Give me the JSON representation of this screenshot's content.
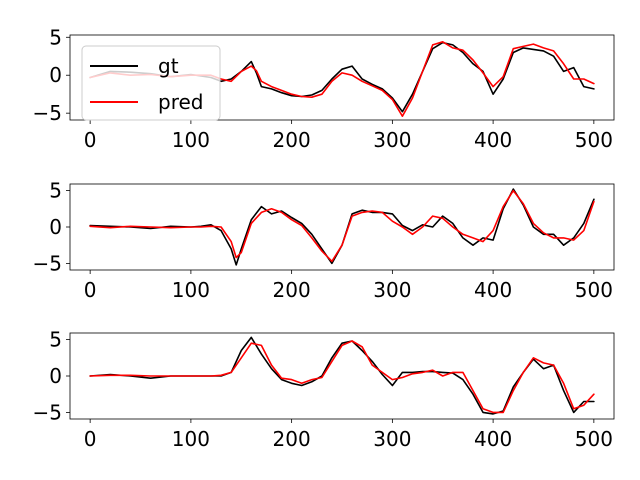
{
  "figure": {
    "legend_entries": [
      "gt",
      "pred"
    ]
  },
  "chart_data": [
    {
      "type": "line",
      "title": "",
      "xlabel": "",
      "ylabel": "",
      "xlim": [
        -20,
        520
      ],
      "ylim": [
        -5.9,
        5.3
      ],
      "xticks": [
        0,
        100,
        200,
        300,
        400,
        500
      ],
      "yticks": [
        -5,
        0,
        5
      ],
      "grid": false,
      "legend": {
        "placement": "upper-left",
        "entries": [
          "gt",
          "pred"
        ]
      },
      "series": [
        {
          "name": "gt",
          "color": "#000000",
          "x": [
            0,
            20,
            40,
            60,
            80,
            100,
            120,
            130,
            140,
            150,
            160,
            165,
            170,
            180,
            190,
            200,
            210,
            220,
            230,
            240,
            250,
            260,
            270,
            280,
            290,
            300,
            310,
            320,
            330,
            340,
            350,
            360,
            370,
            380,
            390,
            400,
            410,
            420,
            430,
            440,
            450,
            460,
            470,
            480,
            490,
            500
          ],
          "values": [
            -0.3,
            0.5,
            0.4,
            0.2,
            -0.2,
            0.1,
            -0.3,
            -0.8,
            -0.5,
            0.5,
            1.8,
            0.3,
            -1.5,
            -1.8,
            -2.3,
            -2.7,
            -2.8,
            -2.6,
            -2.0,
            -0.5,
            0.8,
            1.2,
            -0.5,
            -1.2,
            -1.8,
            -3.0,
            -4.8,
            -2.5,
            0.5,
            3.5,
            4.3,
            4.0,
            3.0,
            1.5,
            0.5,
            -2.5,
            -0.5,
            3.0,
            3.6,
            3.4,
            3.2,
            2.5,
            0.5,
            1.0,
            -1.5,
            -1.8
          ]
        },
        {
          "name": "pred",
          "color": "#ff0000",
          "x": [
            0,
            20,
            40,
            60,
            80,
            100,
            120,
            130,
            140,
            150,
            160,
            165,
            170,
            180,
            190,
            200,
            210,
            220,
            230,
            240,
            250,
            260,
            270,
            280,
            290,
            300,
            310,
            320,
            330,
            340,
            350,
            360,
            370,
            380,
            390,
            400,
            410,
            420,
            430,
            440,
            450,
            460,
            470,
            480,
            490,
            500
          ],
          "values": [
            -0.3,
            0.3,
            0.0,
            0.1,
            -0.2,
            0.0,
            0.0,
            -0.5,
            -0.8,
            0.5,
            1.2,
            0.6,
            -0.8,
            -1.5,
            -2.0,
            -2.5,
            -2.8,
            -2.9,
            -2.5,
            -0.8,
            0.3,
            0.0,
            -0.8,
            -1.4,
            -2.0,
            -3.2,
            -5.4,
            -3.0,
            0.5,
            4.0,
            4.4,
            3.6,
            3.3,
            2.0,
            0.3,
            -1.5,
            -0.2,
            3.5,
            3.8,
            4.1,
            3.6,
            3.2,
            1.5,
            -0.5,
            -0.5,
            -1.1
          ]
        }
      ]
    },
    {
      "type": "line",
      "title": "",
      "xlabel": "",
      "ylabel": "",
      "xlim": [
        -20,
        520
      ],
      "ylim": [
        -5.9,
        5.9
      ],
      "xticks": [
        0,
        100,
        200,
        300,
        400,
        500
      ],
      "yticks": [
        -5,
        0,
        5
      ],
      "grid": false,
      "series": [
        {
          "name": "gt",
          "color": "#000000",
          "x": [
            0,
            20,
            40,
            60,
            80,
            100,
            110,
            120,
            130,
            140,
            145,
            150,
            160,
            170,
            180,
            190,
            200,
            210,
            220,
            230,
            240,
            250,
            260,
            270,
            280,
            290,
            300,
            310,
            320,
            330,
            340,
            350,
            360,
            370,
            380,
            390,
            400,
            410,
            420,
            430,
            440,
            450,
            460,
            470,
            480,
            490,
            500
          ],
          "values": [
            0.2,
            0.1,
            0.0,
            -0.2,
            0.1,
            0.0,
            0.1,
            0.3,
            -0.5,
            -3.0,
            -5.2,
            -3.0,
            1.0,
            2.8,
            1.8,
            2.2,
            1.3,
            0.5,
            -1.0,
            -3.0,
            -5.0,
            -2.5,
            1.8,
            2.3,
            2.0,
            2.0,
            1.8,
            0.2,
            -0.5,
            0.3,
            0.0,
            1.5,
            0.5,
            -1.5,
            -2.5,
            -1.5,
            -1.8,
            2.5,
            5.2,
            3.0,
            0.0,
            -1.0,
            -1.0,
            -2.5,
            -1.5,
            0.5,
            3.8
          ]
        },
        {
          "name": "pred",
          "color": "#ff0000",
          "x": [
            0,
            20,
            40,
            60,
            80,
            100,
            110,
            120,
            130,
            140,
            145,
            150,
            160,
            170,
            180,
            190,
            200,
            210,
            220,
            230,
            240,
            250,
            260,
            270,
            280,
            290,
            300,
            310,
            320,
            330,
            340,
            350,
            360,
            370,
            380,
            390,
            400,
            410,
            420,
            430,
            440,
            450,
            460,
            470,
            480,
            490,
            500
          ],
          "values": [
            0.1,
            -0.1,
            0.1,
            0.0,
            -0.1,
            0.0,
            0.0,
            0.1,
            0.0,
            -2.0,
            -4.2,
            -3.5,
            0.5,
            2.0,
            2.5,
            2.0,
            1.0,
            0.2,
            -1.5,
            -3.3,
            -4.7,
            -2.5,
            1.5,
            2.0,
            2.2,
            2.0,
            0.8,
            0.0,
            -1.0,
            0.0,
            1.5,
            1.2,
            0.0,
            -1.0,
            -1.5,
            -2.0,
            -0.5,
            2.8,
            5.0,
            3.2,
            0.5,
            -0.8,
            -1.5,
            -1.5,
            -1.8,
            -0.5,
            3.5
          ]
        }
      ]
    },
    {
      "type": "line",
      "title": "",
      "xlabel": "",
      "ylabel": "",
      "xlim": [
        -20,
        520
      ],
      "ylim": [
        -5.9,
        5.9
      ],
      "xticks": [
        0,
        100,
        200,
        300,
        400,
        500
      ],
      "yticks": [
        -5,
        0,
        5
      ],
      "grid": false,
      "series": [
        {
          "name": "gt",
          "color": "#000000",
          "x": [
            0,
            20,
            40,
            60,
            80,
            100,
            120,
            130,
            140,
            150,
            160,
            170,
            180,
            190,
            200,
            210,
            220,
            230,
            240,
            250,
            260,
            270,
            280,
            290,
            300,
            310,
            320,
            330,
            340,
            350,
            360,
            370,
            380,
            390,
            400,
            410,
            420,
            430,
            440,
            450,
            460,
            470,
            480,
            490,
            500
          ],
          "values": [
            0.0,
            0.2,
            0.0,
            -0.3,
            0.0,
            0.0,
            0.0,
            0.0,
            0.5,
            3.5,
            5.3,
            3.0,
            1.0,
            -0.5,
            -1.0,
            -1.3,
            -0.8,
            0.0,
            2.5,
            4.5,
            4.8,
            3.5,
            2.0,
            0.2,
            -1.3,
            0.5,
            0.5,
            0.6,
            0.6,
            0.5,
            0.4,
            -0.5,
            -2.5,
            -5.0,
            -5.2,
            -4.8,
            -1.5,
            0.5,
            2.3,
            1.0,
            1.5,
            -2.0,
            -5.0,
            -3.5,
            -3.5
          ]
        },
        {
          "name": "pred",
          "color": "#ff0000",
          "x": [
            0,
            20,
            40,
            60,
            80,
            100,
            120,
            130,
            140,
            150,
            160,
            170,
            180,
            190,
            200,
            210,
            220,
            230,
            240,
            250,
            260,
            270,
            280,
            290,
            300,
            310,
            320,
            330,
            340,
            350,
            360,
            370,
            380,
            390,
            400,
            410,
            420,
            430,
            440,
            450,
            460,
            470,
            480,
            490,
            500
          ],
          "values": [
            0.0,
            0.1,
            0.1,
            0.0,
            0.0,
            0.0,
            0.0,
            0.1,
            0.5,
            2.5,
            4.5,
            4.2,
            1.5,
            -0.3,
            -0.5,
            -1.0,
            -0.5,
            -0.2,
            2.0,
            4.2,
            4.8,
            4.0,
            1.5,
            0.5,
            -0.5,
            -0.2,
            0.3,
            0.5,
            0.8,
            0.0,
            0.5,
            0.5,
            -2.0,
            -4.5,
            -5.0,
            -5.0,
            -2.0,
            0.5,
            2.5,
            1.8,
            1.5,
            -1.0,
            -4.5,
            -4.0,
            -2.5
          ]
        }
      ]
    }
  ]
}
